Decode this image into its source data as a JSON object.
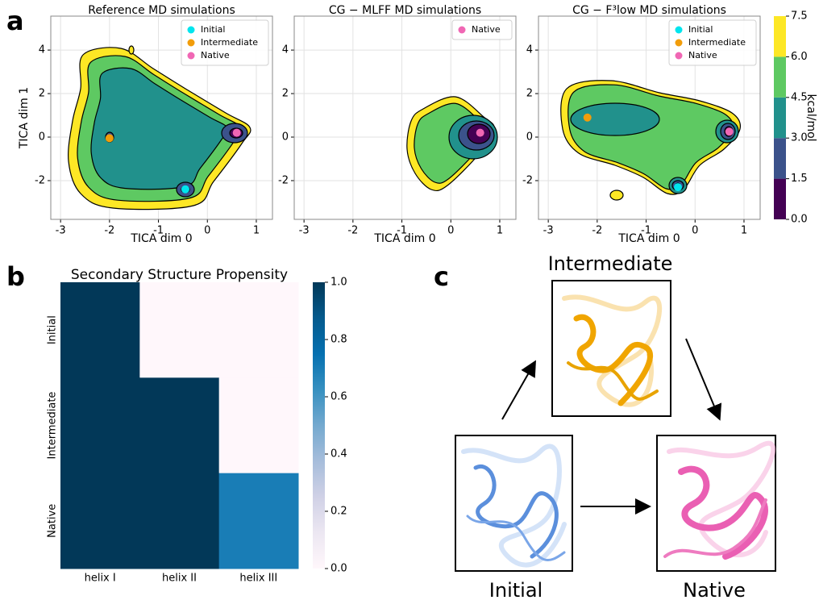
{
  "panel_labels": [
    "a",
    "b",
    "c"
  ],
  "chart_data": [
    {
      "type": "contour",
      "title": "Reference MD simulations",
      "xlabel": "TICA dim 0",
      "ylabel": "TICA dim 1",
      "xlim": [
        -3.2,
        1.33
      ],
      "ylim": [
        -3.78,
        5.56
      ],
      "xticks": [
        -3,
        -2,
        -1,
        0,
        1
      ],
      "yticks": [
        -2,
        0,
        2,
        4
      ],
      "grid": true,
      "series": [
        {
          "name": "Initial",
          "color": "#00e5ee",
          "x": [
            -0.45
          ],
          "values": [
            -2.4
          ]
        },
        {
          "name": "Intermediate",
          "color": "#f29d0a",
          "x": [
            -2.0
          ],
          "values": [
            -0.05
          ]
        },
        {
          "name": "Native",
          "color": "#f067b4",
          "x": [
            0.6
          ],
          "values": [
            0.2
          ]
        }
      ]
    },
    {
      "type": "contour",
      "title": "CG − MLFF MD simulations",
      "xlabel": "TICA dim 0",
      "xlim": [
        -3.2,
        1.33
      ],
      "ylim": [
        -3.78,
        5.56
      ],
      "xticks": [
        -3,
        -2,
        -1,
        0,
        1
      ],
      "yticks": [
        -2,
        0,
        2,
        4
      ],
      "grid": true,
      "series": [
        {
          "name": "Native",
          "color": "#f067b4",
          "x": [
            0.6
          ],
          "values": [
            0.2
          ]
        }
      ]
    },
    {
      "type": "contour",
      "title": "CG − F³low MD simulations",
      "xlabel": "TICA dim 0",
      "xlim": [
        -3.2,
        1.33
      ],
      "ylim": [
        -3.78,
        5.56
      ],
      "xticks": [
        -3,
        -2,
        -1,
        0,
        1
      ],
      "yticks": [
        -2,
        0,
        2,
        4
      ],
      "grid": true,
      "series": [
        {
          "name": "Initial",
          "color": "#00e5ee",
          "x": [
            -0.35
          ],
          "values": [
            -2.3
          ]
        },
        {
          "name": "Intermediate",
          "color": "#f29d0a",
          "x": [
            -2.2
          ],
          "values": [
            0.9
          ]
        },
        {
          "name": "Native",
          "color": "#f067b4",
          "x": [
            0.7
          ],
          "values": [
            0.25
          ]
        }
      ]
    },
    {
      "type": "heatmap",
      "title": "Secondary Structure Propensity",
      "x_categories": [
        "helix I",
        "helix II",
        "helix III"
      ],
      "y_categories": [
        "Initial",
        "Intermediate",
        "Native"
      ],
      "values": [
        [
          1,
          0,
          0
        ],
        [
          1,
          1,
          0
        ],
        [
          1,
          1,
          0.7
        ]
      ],
      "colormap": [
        "#fff7fb",
        "#ece7f2",
        "#d0d1e6",
        "#a6bddb",
        "#74a9cf",
        "#3690c0",
        "#0570b0",
        "#045a8d",
        "#023858"
      ],
      "colorbar_lim": [
        0,
        1
      ],
      "colorbar_ticks": [
        {
          "value": 0,
          "label": "0.0"
        },
        {
          "value": 0.2,
          "label": "0.2"
        },
        {
          "value": 0.4,
          "label": "0.4"
        },
        {
          "value": 0.6,
          "label": "0.6"
        },
        {
          "value": 0.8,
          "label": "0.8"
        },
        {
          "value": 1,
          "label": "1.0"
        }
      ]
    }
  ],
  "colorbar": {
    "label": "kcal/mol",
    "lim": [
      0,
      7.5
    ],
    "ticks": [
      {
        "value": 0,
        "label": "0.0"
      },
      {
        "value": 1.5,
        "label": "1.5"
      },
      {
        "value": 3,
        "label": "3.0"
      },
      {
        "value": 4.5,
        "label": "4.5"
      },
      {
        "value": 6,
        "label": "6.0"
      },
      {
        "value": 7.5,
        "label": "7.5"
      }
    ],
    "colors": [
      "#440154",
      "#3b528b",
      "#21918c",
      "#5ec962",
      "#fde725"
    ]
  },
  "diagram": {
    "nodes": [
      {
        "label": "Intermediate"
      },
      {
        "label": "Initial"
      },
      {
        "label": "Native"
      }
    ]
  }
}
